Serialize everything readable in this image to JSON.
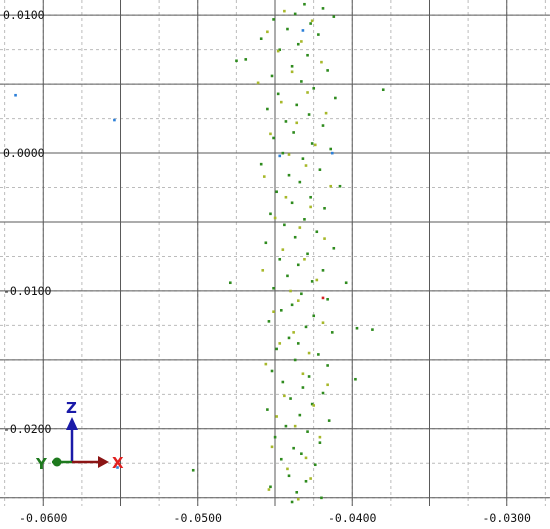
{
  "chart_data": {
    "type": "scatter",
    "xlim": [
      -0.0628,
      -0.0272
    ],
    "ylim": [
      -0.0256,
      0.0111
    ],
    "grid": true,
    "x_ticks": [
      {
        "value": -0.06,
        "label": "-0.0600"
      },
      {
        "value": -0.05,
        "label": "-0.0500"
      },
      {
        "value": -0.04,
        "label": "-0.0400"
      },
      {
        "value": -0.03,
        "label": "-0.0300"
      }
    ],
    "y_ticks": [
      {
        "value": 0.01,
        "label": "0.0100"
      },
      {
        "value": 0.0,
        "label": "0.0000"
      },
      {
        "value": -0.01,
        "label": "-0.0100"
      },
      {
        "value": -0.02,
        "label": "-0.0200"
      }
    ],
    "series": [
      {
        "color": "#2e8b1e",
        "points": [
          [
            -0.0431,
            0.0108
          ],
          [
            -0.0419,
            0.0105
          ],
          [
            -0.0437,
            0.0101
          ],
          [
            -0.0412,
            0.0099
          ],
          [
            -0.0451,
            0.0097
          ],
          [
            -0.0427,
            0.0094
          ],
          [
            -0.0442,
            0.009
          ],
          [
            -0.0422,
            0.0086
          ],
          [
            -0.0459,
            0.0083
          ],
          [
            -0.0435,
            0.0079
          ],
          [
            -0.0447,
            0.0075
          ],
          [
            -0.0429,
            0.0071
          ],
          [
            -0.0469,
            0.0068
          ],
          [
            -0.0439,
            0.0063
          ],
          [
            -0.0416,
            0.006
          ],
          [
            -0.0452,
            0.0056
          ],
          [
            -0.0433,
            0.0052
          ],
          [
            -0.0425,
            0.0047
          ],
          [
            -0.0448,
            0.0043
          ],
          [
            -0.0411,
            0.004
          ],
          [
            -0.0436,
            0.0035
          ],
          [
            -0.0455,
            0.0032
          ],
          [
            -0.0428,
            0.0028
          ],
          [
            -0.0443,
            0.0023
          ],
          [
            -0.0419,
            0.002
          ],
          [
            -0.0438,
            0.0015
          ],
          [
            -0.0451,
            0.0011
          ],
          [
            -0.0426,
            0.0007
          ],
          [
            -0.0414,
            0.0003
          ],
          [
            -0.0445,
            0.0
          ],
          [
            -0.0432,
            -0.0004
          ],
          [
            -0.0459,
            -0.0008
          ],
          [
            -0.0421,
            -0.0012
          ],
          [
            -0.0441,
            -0.0016
          ],
          [
            -0.0434,
            -0.0021
          ],
          [
            -0.0408,
            -0.0024
          ],
          [
            -0.0449,
            -0.0028
          ],
          [
            -0.0427,
            -0.0032
          ],
          [
            -0.0439,
            -0.0036
          ],
          [
            -0.0418,
            -0.004
          ],
          [
            -0.0453,
            -0.0044
          ],
          [
            -0.0431,
            -0.0048
          ],
          [
            -0.0444,
            -0.0052
          ],
          [
            -0.0423,
            -0.0057
          ],
          [
            -0.0437,
            -0.0061
          ],
          [
            -0.0456,
            -0.0065
          ],
          [
            -0.0412,
            -0.0069
          ],
          [
            -0.0429,
            -0.0073
          ],
          [
            -0.0447,
            -0.0077
          ],
          [
            -0.0435,
            -0.0081
          ],
          [
            -0.0419,
            -0.0085
          ],
          [
            -0.0442,
            -0.0089
          ],
          [
            -0.0426,
            -0.0093
          ],
          [
            -0.0404,
            -0.0094
          ],
          [
            -0.0451,
            -0.0098
          ],
          [
            -0.0433,
            -0.0102
          ],
          [
            -0.0416,
            -0.0106
          ],
          [
            -0.0439,
            -0.011
          ],
          [
            -0.0446,
            -0.0114
          ],
          [
            -0.0425,
            -0.0118
          ],
          [
            -0.0454,
            -0.0122
          ],
          [
            -0.043,
            -0.0126
          ],
          [
            -0.0413,
            -0.013
          ],
          [
            -0.0441,
            -0.0134
          ],
          [
            -0.0397,
            -0.0127
          ],
          [
            -0.0435,
            -0.0138
          ],
          [
            -0.0449,
            -0.0142
          ],
          [
            -0.0422,
            -0.0146
          ],
          [
            -0.0437,
            -0.015
          ],
          [
            -0.0416,
            -0.0154
          ],
          [
            -0.0452,
            -0.0158
          ],
          [
            -0.0428,
            -0.0162
          ],
          [
            -0.0445,
            -0.0166
          ],
          [
            -0.0432,
            -0.017
          ],
          [
            -0.0398,
            -0.0164
          ],
          [
            -0.0419,
            -0.0174
          ],
          [
            -0.044,
            -0.0178
          ],
          [
            -0.0426,
            -0.0182
          ],
          [
            -0.0455,
            -0.0186
          ],
          [
            -0.0434,
            -0.019
          ],
          [
            -0.0415,
            -0.0194
          ],
          [
            -0.0443,
            -0.0198
          ],
          [
            -0.0429,
            -0.0202
          ],
          [
            -0.045,
            -0.0206
          ],
          [
            -0.0421,
            -0.021
          ],
          [
            -0.0438,
            -0.0214
          ],
          [
            -0.0433,
            -0.0218
          ],
          [
            -0.0446,
            -0.0222
          ],
          [
            -0.0424,
            -0.0226
          ],
          [
            -0.0503,
            -0.023
          ],
          [
            -0.0441,
            -0.0234
          ],
          [
            -0.043,
            -0.0238
          ],
          [
            -0.0453,
            -0.0242
          ],
          [
            -0.0436,
            -0.0246
          ],
          [
            -0.042,
            -0.025
          ],
          [
            -0.0439,
            -0.0253
          ],
          [
            -0.0479,
            -0.0094
          ],
          [
            -0.0475,
            0.0067
          ],
          [
            -0.038,
            0.0046
          ],
          [
            -0.0387,
            -0.0128
          ]
        ]
      },
      {
        "color": "#a7b82a",
        "points": [
          [
            -0.0444,
            0.0103
          ],
          [
            -0.0426,
            0.0096
          ],
          [
            -0.0455,
            0.0088
          ],
          [
            -0.0433,
            0.0081
          ],
          [
            -0.0448,
            0.0074
          ],
          [
            -0.042,
            0.0066
          ],
          [
            -0.0439,
            0.0059
          ],
          [
            -0.0461,
            0.0051
          ],
          [
            -0.0429,
            0.0044
          ],
          [
            -0.0446,
            0.0037
          ],
          [
            -0.0417,
            0.0029
          ],
          [
            -0.0436,
            0.0022
          ],
          [
            -0.0453,
            0.0014
          ],
          [
            -0.0424,
            0.0006
          ],
          [
            -0.0441,
            -0.0001
          ],
          [
            -0.043,
            -0.0009
          ],
          [
            -0.0457,
            -0.0017
          ],
          [
            -0.0414,
            -0.0024
          ],
          [
            -0.0443,
            -0.0032
          ],
          [
            -0.0427,
            -0.0039
          ],
          [
            -0.045,
            -0.0047
          ],
          [
            -0.0434,
            -0.0054
          ],
          [
            -0.0418,
            -0.0062
          ],
          [
            -0.0445,
            -0.007
          ],
          [
            -0.0431,
            -0.0077
          ],
          [
            -0.0458,
            -0.0085
          ],
          [
            -0.0423,
            -0.0092
          ],
          [
            -0.044,
            -0.01
          ],
          [
            -0.0435,
            -0.0107
          ],
          [
            -0.0451,
            -0.0115
          ],
          [
            -0.0419,
            -0.0123
          ],
          [
            -0.0438,
            -0.013
          ],
          [
            -0.0447,
            -0.0138
          ],
          [
            -0.0428,
            -0.0145
          ],
          [
            -0.0456,
            -0.0153
          ],
          [
            -0.0432,
            -0.016
          ],
          [
            -0.0416,
            -0.0168
          ],
          [
            -0.0444,
            -0.0176
          ],
          [
            -0.0425,
            -0.0183
          ],
          [
            -0.0449,
            -0.0191
          ],
          [
            -0.0437,
            -0.0198
          ],
          [
            -0.0421,
            -0.0206
          ],
          [
            -0.0452,
            -0.0213
          ],
          [
            -0.043,
            -0.0221
          ],
          [
            -0.0442,
            -0.0229
          ],
          [
            -0.0427,
            -0.0236
          ],
          [
            -0.0454,
            -0.0244
          ],
          [
            -0.0435,
            -0.0251
          ]
        ]
      },
      {
        "color": "#2b7fd8",
        "points": [
          [
            -0.0432,
            0.0089
          ],
          [
            -0.0413,
            0.0
          ],
          [
            -0.0618,
            0.0042
          ],
          [
            -0.0554,
            0.0024
          ],
          [
            -0.0447,
            -0.0002
          ],
          [
            -0.0552,
            -0.0228
          ]
        ]
      },
      {
        "color": "#d42222",
        "points": [
          [
            -0.0419,
            -0.0105
          ]
        ]
      }
    ]
  },
  "triad": {
    "z_label": "Z",
    "x_label": "X",
    "y_label": "Y",
    "z_color": "#1a1aa8",
    "x_color": "#8b1515",
    "y_color": "#1e7a1e"
  }
}
